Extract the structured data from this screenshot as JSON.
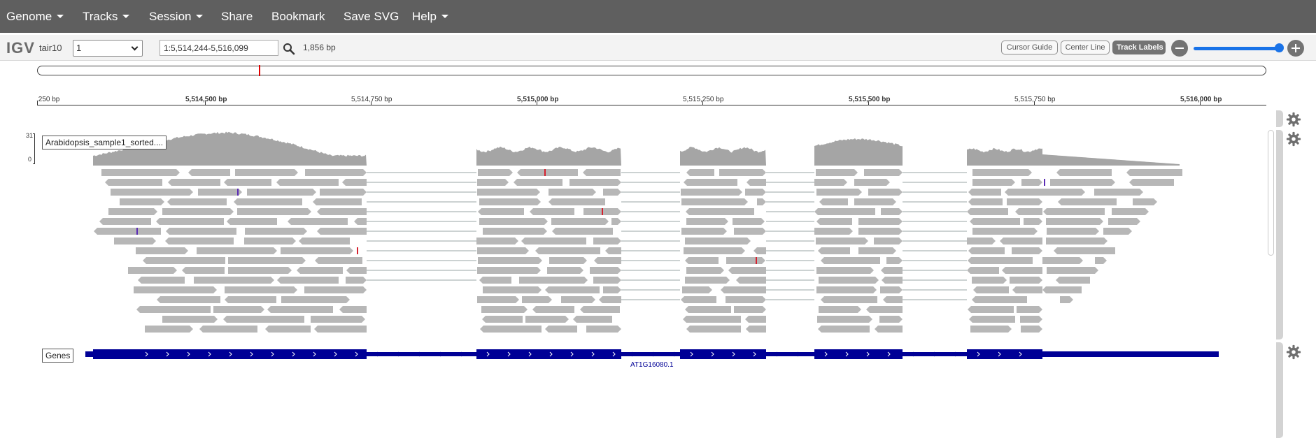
{
  "menu": {
    "genome": "Genome",
    "tracks": "Tracks",
    "session": "Session",
    "share": "Share",
    "bookmark": "Bookmark",
    "save_svg": "Save SVG",
    "help": "Help"
  },
  "navbar": {
    "logo": "IGV",
    "genome_id": "tair10",
    "chromosome": "1",
    "locus": "1:5,514,244-5,516,099",
    "width_bp": "1,856 bp",
    "cursor_guide": "Cursor Guide",
    "center_line": "Center Line",
    "track_labels": "Track Labels"
  },
  "ruler": {
    "labels": [
      {
        "text": ",250 bp",
        "major": false
      },
      {
        "text": "5,514,500 bp",
        "major": true
      },
      {
        "text": "5,514,750 bp",
        "major": false
      },
      {
        "text": "5,515,000 bp",
        "major": true
      },
      {
        "text": "5,515,250 bp",
        "major": false
      },
      {
        "text": "5,515,500 bp",
        "major": true
      },
      {
        "text": "5,515,750 bp",
        "major": false
      },
      {
        "text": "5,516,000 bp",
        "major": true
      }
    ]
  },
  "alignment_track": {
    "label": "Arabidopsis_sample1_sorted....",
    "coverage_max": "31",
    "coverage_min": "0"
  },
  "gene_track": {
    "label": "Genes",
    "gene_name": "AT1G16080.1"
  },
  "colors": {
    "menubar": "#5f5f5f",
    "read": "#b7b7b7",
    "coverage": "#a5a5a5",
    "gene": "#000096",
    "mismatch_red": "#d6212f",
    "mismatch_purple": "#5b2bb5"
  },
  "icons": {
    "search": "search-icon",
    "zoom_out": "zoom-out-icon",
    "zoom_in": "zoom-in-icon",
    "settings": "gear-icon"
  }
}
